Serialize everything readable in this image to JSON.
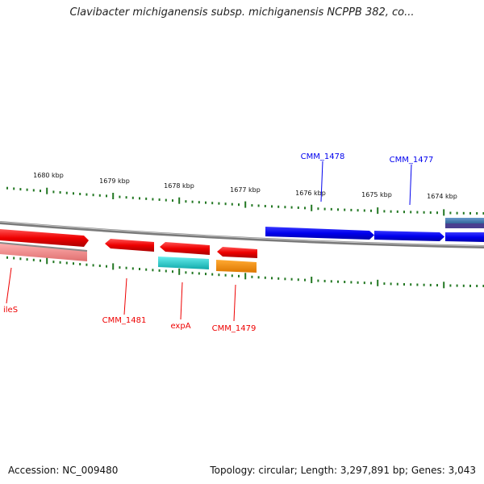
{
  "title": "Clavibacter michiganensis subsp. michiganensis NCPPB 382, co...",
  "footer": {
    "accession": "Accession: NC_009480",
    "stats": "Topology: circular; Length: 3,297,891 bp; Genes: 3,043"
  },
  "ticks": [
    "1680 kbp",
    "1679 kbp",
    "1678 kbp",
    "1677 kbp",
    "1676 kbp",
    "1675 kbp",
    "1674 kbp"
  ],
  "genes": {
    "forward": [
      {
        "label": "CMM_1478",
        "color": "#0000ee"
      },
      {
        "label": "CMM_1477",
        "color": "#0000ee"
      }
    ],
    "reverse": [
      {
        "label": "ileS",
        "color": "#ee0000"
      },
      {
        "label": "CMM_1481",
        "color": "#ee0000"
      },
      {
        "label": "expA",
        "color": "#ee0000"
      },
      {
        "label": "CMM_1479",
        "color": "#ee0000"
      }
    ]
  },
  "colors": {
    "forward": "#0000ee",
    "reverse": "#ee0000",
    "rna": "#22cccc",
    "other": "#ff8800",
    "tick": "#227722",
    "backbone": "#808080"
  }
}
